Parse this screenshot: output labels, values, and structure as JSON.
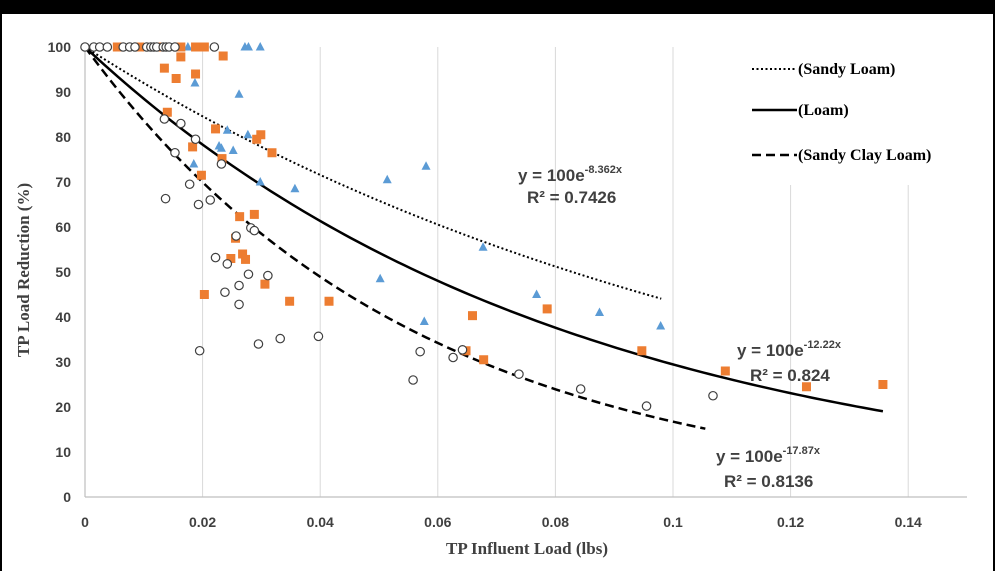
{
  "chart_data": {
    "type": "scatter",
    "title": "",
    "xlabel": "TP Influent Load (lbs)",
    "ylabel": "TP Load Reduction (%)",
    "xlim": [
      0,
      0.15
    ],
    "ylim": [
      0,
      100
    ],
    "x_ticks": [
      "0",
      "0.02",
      "0.04",
      "0.06",
      "0.08",
      "0.1",
      "0.12",
      "0.14"
    ],
    "y_ticks": [
      "0",
      "10",
      "20",
      "30",
      "40",
      "50",
      "60",
      "70",
      "80",
      "90",
      "100"
    ],
    "grid": "vertical",
    "legend_position": "top-right",
    "legend": [
      {
        "label": "(Sandy Loam)",
        "style": "dotted"
      },
      {
        "label": "(Loam)",
        "style": "solid"
      },
      {
        "label": "(Sandy Clay Loam)",
        "style": "dashed"
      }
    ],
    "series": [
      {
        "marker": "triangle",
        "color": "#5b9bd5",
        "points": [
          [
            0.0175,
            100
          ],
          [
            0.0272,
            100
          ],
          [
            0.0278,
            100
          ],
          [
            0.0298,
            100
          ],
          [
            0.0187,
            92
          ],
          [
            0.0262,
            89.5
          ],
          [
            0.0185,
            74
          ],
          [
            0.0228,
            78
          ],
          [
            0.0232,
            77.5
          ],
          [
            0.0242,
            81.5
          ],
          [
            0.0252,
            77
          ],
          [
            0.0277,
            80.5
          ],
          [
            0.0298,
            70
          ],
          [
            0.0357,
            68.5
          ],
          [
            0.0514,
            70.5
          ],
          [
            0.058,
            73.5
          ],
          [
            0.0677,
            55.5
          ],
          [
            0.0502,
            48.5
          ],
          [
            0.0577,
            39
          ],
          [
            0.0768,
            45
          ],
          [
            0.0875,
            41
          ],
          [
            0.0979,
            38
          ]
        ]
      },
      {
        "marker": "square",
        "color": "#ed7d31",
        "points": [
          [
            0.0055,
            100
          ],
          [
            0.0093,
            100
          ],
          [
            0.0128,
            100
          ],
          [
            0.0163,
            100
          ],
          [
            0.0188,
            100
          ],
          [
            0.0203,
            100
          ],
          [
            0.0135,
            95.3
          ],
          [
            0.0155,
            93
          ],
          [
            0.0163,
            97.8
          ],
          [
            0.0188,
            94
          ],
          [
            0.0235,
            98
          ],
          [
            0.014,
            85.5
          ],
          [
            0.0183,
            77.8
          ],
          [
            0.0198,
            71.5
          ],
          [
            0.0222,
            81.8
          ],
          [
            0.0233,
            75.2
          ],
          [
            0.0292,
            79.5
          ],
          [
            0.0299,
            80.5
          ],
          [
            0.0318,
            76.5
          ],
          [
            0.0203,
            45
          ],
          [
            0.0248,
            53
          ],
          [
            0.0256,
            57.5
          ],
          [
            0.0263,
            62.3
          ],
          [
            0.0268,
            54
          ],
          [
            0.0273,
            52.8
          ],
          [
            0.0288,
            62.8
          ],
          [
            0.0306,
            47.3
          ],
          [
            0.0348,
            43.5
          ],
          [
            0.0415,
            43.5
          ],
          [
            0.0659,
            40.3
          ],
          [
            0.0648,
            32.5
          ],
          [
            0.0678,
            30.5
          ],
          [
            0.0786,
            41.8
          ],
          [
            0.0947,
            32.5
          ],
          [
            0.1089,
            28
          ],
          [
            0.1227,
            24.5
          ],
          [
            0.1357,
            25
          ]
        ]
      },
      {
        "marker": "circle",
        "color": "#404040",
        "points": [
          [
            0.0,
            100
          ],
          [
            0.0015,
            100
          ],
          [
            0.0025,
            100
          ],
          [
            0.0038,
            100
          ],
          [
            0.0065,
            100
          ],
          [
            0.0076,
            100
          ],
          [
            0.0085,
            100
          ],
          [
            0.0105,
            100
          ],
          [
            0.0112,
            100
          ],
          [
            0.0117,
            100
          ],
          [
            0.0122,
            100
          ],
          [
            0.0133,
            100
          ],
          [
            0.0138,
            100
          ],
          [
            0.0143,
            100
          ],
          [
            0.0153,
            100
          ],
          [
            0.022,
            100
          ],
          [
            0.0135,
            84
          ],
          [
            0.0163,
            83
          ],
          [
            0.0153,
            76.5
          ],
          [
            0.0188,
            79.5
          ],
          [
            0.0178,
            69.5
          ],
          [
            0.0232,
            74
          ],
          [
            0.0137,
            66.3
          ],
          [
            0.0193,
            65
          ],
          [
            0.0213,
            66
          ],
          [
            0.0222,
            53.2
          ],
          [
            0.0242,
            51.8
          ],
          [
            0.0257,
            58
          ],
          [
            0.0282,
            59.8
          ],
          [
            0.0288,
            59.2
          ],
          [
            0.0238,
            45.5
          ],
          [
            0.0262,
            47
          ],
          [
            0.0278,
            49.5
          ],
          [
            0.0311,
            49.2
          ],
          [
            0.0262,
            42.8
          ],
          [
            0.0195,
            32.5
          ],
          [
            0.0295,
            34
          ],
          [
            0.0332,
            35.2
          ],
          [
            0.0397,
            35.7
          ],
          [
            0.0558,
            26
          ],
          [
            0.057,
            32.3
          ],
          [
            0.0626,
            31
          ],
          [
            0.0642,
            32.7
          ],
          [
            0.0738,
            27.3
          ],
          [
            0.0843,
            24
          ],
          [
            0.0955,
            20.2
          ],
          [
            0.1068,
            22.5
          ]
        ]
      }
    ],
    "trendlines": [
      {
        "name": "(Sandy Loam)",
        "style": "dotted",
        "k": 8.362,
        "x_end": 0.098,
        "equation": "y = 100e",
        "exponent": "-8.362x",
        "r2": "R² = 0.7426"
      },
      {
        "name": "(Loam)",
        "style": "solid",
        "k": 12.22,
        "x_end": 0.1357,
        "equation": "y = 100e",
        "exponent": "-12.22x",
        "r2": "R² = 0.824"
      },
      {
        "name": "(Sandy Clay Loam)",
        "style": "dashed",
        "k": 17.87,
        "x_end": 0.1055,
        "equation": "y = 100e",
        "exponent": "-17.87x",
        "r2": "R² = 0.8136"
      }
    ]
  }
}
